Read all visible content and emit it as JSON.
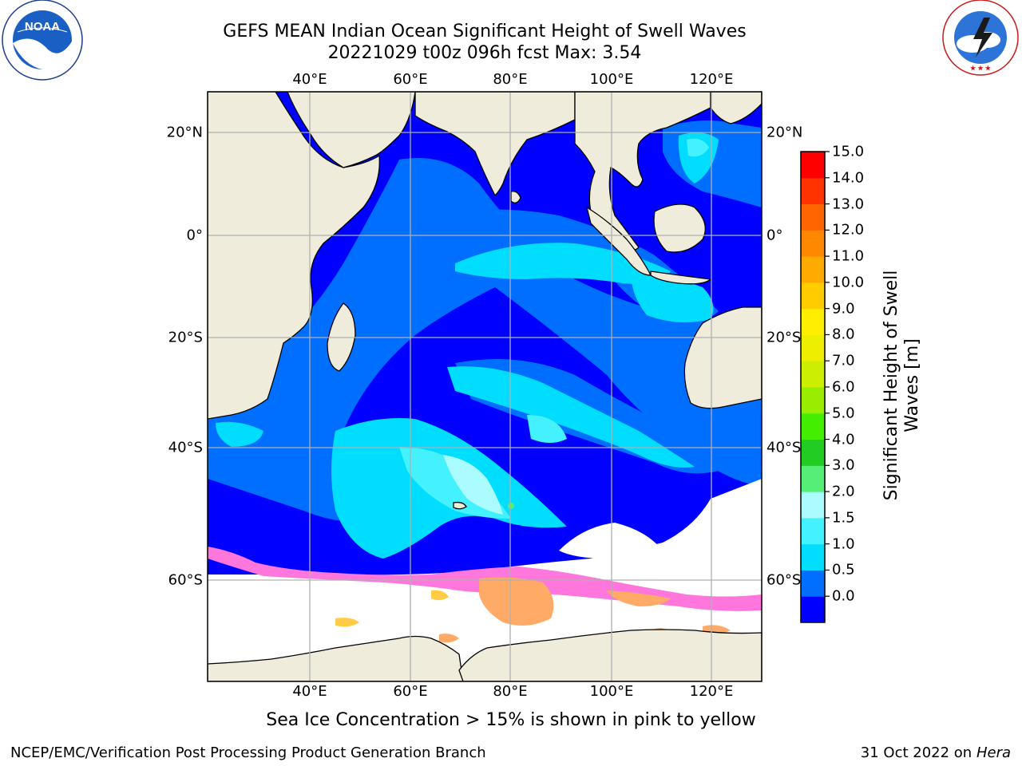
{
  "title_line1": "GEFS MEAN Indian Ocean Significant Height of Swell Waves",
  "title_line2": "20221029 t00z 096h fcst   Max: 3.54",
  "logos": {
    "left": "noaa-logo",
    "left_text": "NOAA",
    "left_ring_text": "NATIONAL OCEANIC AND ATMOSPHERIC ADMINISTRATION · U.S. DEPARTMENT OF COMMERCE",
    "right": "nws-logo",
    "right_ring_text": "NATIONAL WEATHER SERVICE"
  },
  "map": {
    "longitude_labels": [
      "40°E",
      "60°E",
      "80°E",
      "100°E",
      "120°E"
    ],
    "latitude_labels": [
      "20°N",
      "0°",
      "20°S",
      "40°S",
      "60°S"
    ],
    "land_color": "#efecdc",
    "grid": true
  },
  "colorbar": {
    "label_line1": "Significant Height of Swell",
    "label_line2": "Waves [m]",
    "ticks": [
      "15.0",
      "14.0",
      "13.0",
      "12.0",
      "11.0",
      "10.0",
      "9.0",
      "8.0",
      "7.0",
      "6.0",
      "5.0",
      "4.0",
      "3.0",
      "2.0",
      "1.5",
      "1.0",
      "0.5",
      "0.0"
    ],
    "colors": [
      "#0000ff",
      "#006eff",
      "#00ddff",
      "#44f2ff",
      "#aafcff",
      "#55ee77",
      "#22cc22",
      "#44ee00",
      "#99ee00",
      "#ccee00",
      "#eeee00",
      "#ffee00",
      "#ffcc00",
      "#ffaa00",
      "#ff8800",
      "#ff6600",
      "#ff3300",
      "#ff0000"
    ]
  },
  "sea_ice_colors": [
    "#ff77dd",
    "#ffaa66",
    "#ffcc44"
  ],
  "caption": "Sea Ice Concentration > 15% is shown in pink to yellow",
  "credit": "NCEP/EMC/Verification Post Processing Product Generation Branch",
  "date_prefix": "31 Oct 2022 on",
  "date_host": "Hera"
}
